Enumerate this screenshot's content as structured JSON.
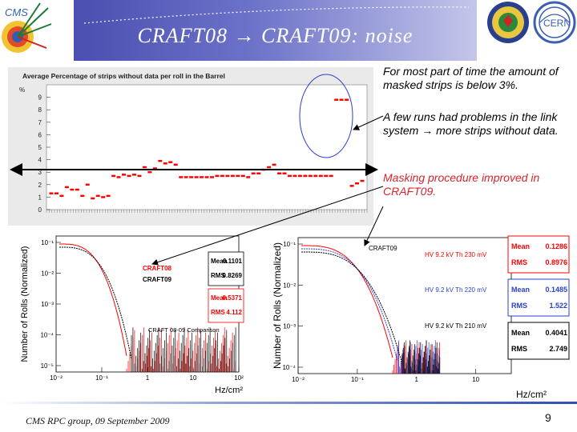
{
  "slide": {
    "title": "CRAFT08 → CRAFT09: noise",
    "bullets": [
      "For most part of time the amount of masked strips is below 3%.",
      "A few runs had problems in the link system → more strips without data.",
      "Masking procedure improved in CRAFT09."
    ],
    "footer": "CMS RPC group, 09 September 2009",
    "page_number": "9",
    "logos": {
      "left": "CMS",
      "right": "CERN"
    },
    "colors": {
      "banner": "#5a5fc0",
      "title": "#ffffff",
      "highlight": "#d9232a",
      "craft08": "#ff0000",
      "craft09": "#000000"
    }
  },
  "chart_data": [
    {
      "type": "scatter",
      "title": "Average Percentage of strips without data per roll in the Barrel",
      "ylabel": "%",
      "yticks": [
        0,
        1,
        2,
        3,
        4,
        5,
        6,
        7,
        8,
        9
      ],
      "ylim": [
        0,
        10
      ],
      "series": [
        {
          "color": "#ff0000",
          "x": [
            1,
            2,
            3,
            4,
            5,
            6,
            7,
            8,
            9,
            10,
            11,
            12,
            13,
            14,
            15,
            16,
            17,
            18,
            19,
            20,
            21,
            22,
            23,
            24,
            25,
            26,
            27,
            28,
            29,
            30,
            31,
            32,
            33,
            34,
            35,
            36,
            37,
            38,
            39,
            40,
            41,
            42,
            43,
            44,
            45,
            46,
            47,
            48,
            49,
            50,
            51,
            52,
            53,
            54,
            55,
            56,
            57,
            58,
            59,
            60,
            61
          ],
          "values": [
            1.3,
            1.3,
            1.1,
            1.8,
            1.6,
            1.6,
            1.1,
            2.0,
            0.9,
            1.1,
            1.0,
            1.1,
            2.7,
            2.6,
            2.8,
            2.7,
            2.8,
            2.7,
            3.4,
            3.0,
            3.3,
            3.9,
            3.7,
            3.8,
            3.6,
            2.6,
            2.6,
            2.6,
            2.6,
            2.6,
            2.6,
            2.6,
            2.7,
            2.7,
            2.7,
            2.7,
            2.7,
            2.7,
            2.6,
            2.9,
            2.9,
            3.2,
            3.4,
            3.6,
            2.9,
            2.9,
            2.7,
            2.7,
            2.7,
            2.7,
            2.7,
            2.7,
            2.7,
            2.7,
            2.7,
            8.8,
            8.8,
            8.8,
            1.9,
            2.1,
            2.3
          ]
        }
      ]
    },
    {
      "type": "line",
      "xlabel": "Hz/cm²",
      "ylabel": "Number of Rolls (Normalized)",
      "xscale": "log",
      "yscale": "log",
      "xticks": [
        "10⁻²",
        "10⁻¹",
        "1",
        "10",
        "10²"
      ],
      "yticks": [
        "10⁻¹",
        "10⁻²",
        "10⁻³",
        "10⁻⁴",
        "10⁻⁵"
      ],
      "annotation": "CRAFT 08-09 Comparison",
      "series": [
        {
          "name": "CRAFT08",
          "color": "#ff0000",
          "mean": "0.5371",
          "rms": "4.112"
        },
        {
          "name": "CRAFT09",
          "color": "#000000",
          "mean": "0.1101",
          "rms": "0.8269"
        }
      ],
      "stats_labels": {
        "mean": "Mean",
        "rms": "RMS"
      }
    },
    {
      "type": "line",
      "xlabel": "Hz/cm²",
      "ylabel": "Number of Rolls (Normalized)",
      "xscale": "log",
      "yscale": "log",
      "xticks": [
        "10⁻²",
        "10⁻¹",
        "1",
        "10"
      ],
      "yticks": [
        "10⁻¹",
        "10⁻²",
        "10⁻³",
        "10⁻⁴"
      ],
      "annotation": "CRAFT09",
      "series": [
        {
          "name": "HV 9.2 kV Th 230 mV",
          "color": "#ff0000",
          "mean": "0.1286",
          "rms": "0.8976"
        },
        {
          "name": "HV 9.2 kV Th 220 mV",
          "color": "#2a3fd0",
          "mean": "0.1485",
          "rms": "1.522"
        },
        {
          "name": "HV 9.2 kV Th 210 mV",
          "color": "#000000",
          "mean": "0.4041",
          "rms": "2.749"
        }
      ],
      "stats_labels": {
        "mean": "Mean",
        "rms": "RMS"
      }
    }
  ]
}
